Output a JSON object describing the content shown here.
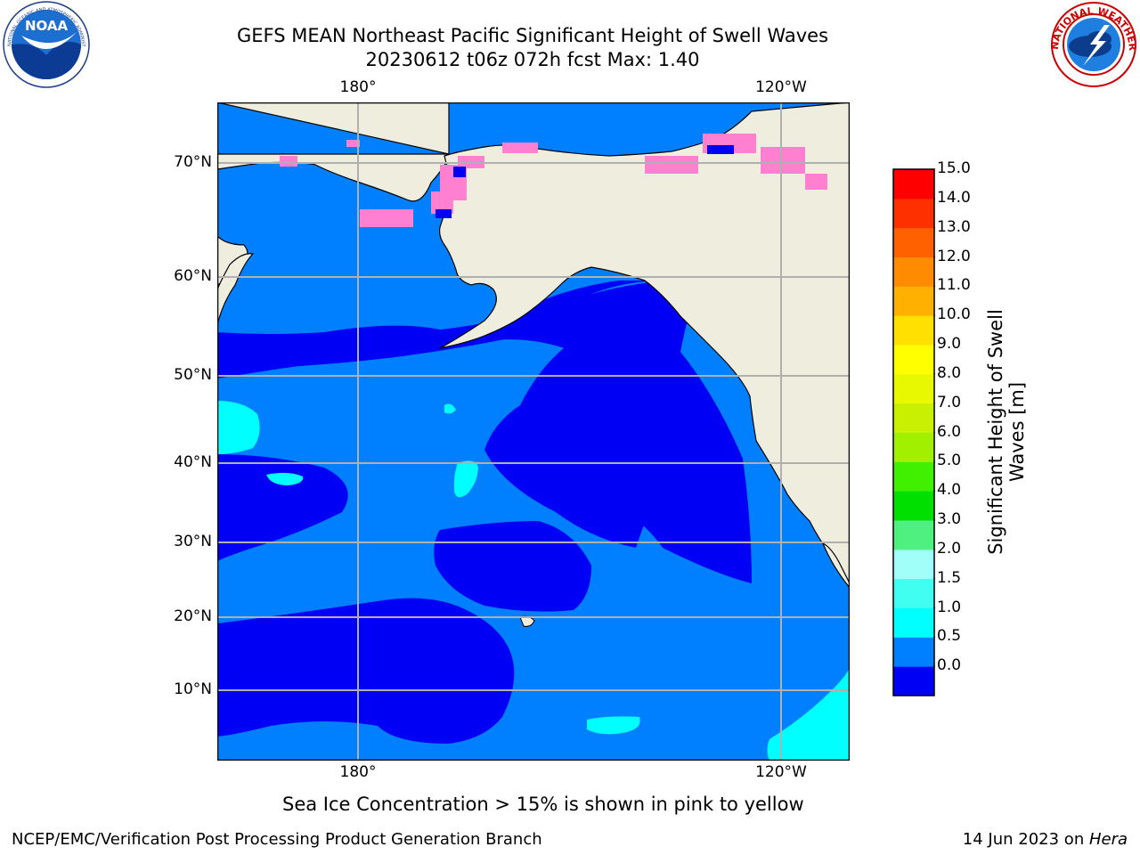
{
  "title": {
    "line1": "GEFS MEAN Northeast Pacific Significant Height of Swell Waves",
    "line2": "20230612 t06z 072h fcst   Max: 1.40"
  },
  "logos": {
    "noaa_left": "noaa-logo-icon",
    "nws_right": "nws-logo-icon",
    "noaa_text": "NOAA",
    "noaa_ring": "NATIONAL OCEANIC AND ATMOSPHERIC ADMINISTRATION · U.S. DEPARTMENT OF COMMERCE",
    "nws_ring": "NATIONAL WEATHER SERVICE"
  },
  "map": {
    "lat_labels": [
      "70°N",
      "60°N",
      "50°N",
      "40°N",
      "30°N",
      "20°N",
      "10°N"
    ],
    "lon_labels_top": [
      "180°",
      "120°W"
    ],
    "lon_labels_bottom": [
      "180°",
      "120°W"
    ],
    "grid": true,
    "colors": {
      "land": "#efedde",
      "swell_0_0.5": "#0000f5",
      "swell_0.5_1.0": "#0080ff",
      "swell_1.0_1.5": "#00ffff",
      "ice": "#ff80d0",
      "grid": "#b0b0b0"
    }
  },
  "colorbar": {
    "title_line1": "Significant Height of Swell",
    "title_line2": "Waves [m]",
    "ticks": [
      "15.0",
      "14.0",
      "13.0",
      "12.0",
      "11.0",
      "10.0",
      "9.0",
      "8.0",
      "7.0",
      "6.0",
      "5.0",
      "4.0",
      "3.0",
      "2.0",
      "1.5",
      "1.0",
      "0.5",
      "0.0"
    ],
    "colors_bottom_to_top": [
      "#0000f5",
      "#0080ff",
      "#00ffff",
      "#40fff0",
      "#a0fff8",
      "#50f080",
      "#00e000",
      "#40f000",
      "#a0f000",
      "#c8f000",
      "#e8f800",
      "#ffff00",
      "#ffe000",
      "#ffb000",
      "#ff8c00",
      "#ff6000",
      "#ff3000",
      "#ff0000"
    ]
  },
  "footer": {
    "note": "Sea Ice Concentration > 15% is shown in pink to yellow",
    "credit": "NCEP/EMC/Verification Post Processing Product Generation Branch",
    "date": "14 Jun 2023 on ",
    "host": "Hera"
  }
}
